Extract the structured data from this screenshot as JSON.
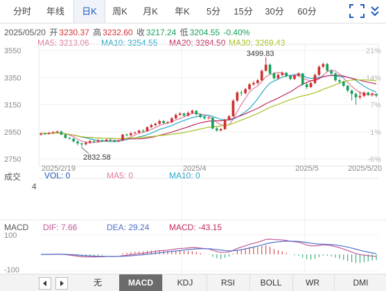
{
  "period_tabs": [
    "分时",
    "年线",
    "日K",
    "周K",
    "月K",
    "年K",
    "5分",
    "15分",
    "30分",
    "60分"
  ],
  "active_tab": "日K",
  "quote": {
    "date": "2025/05/20",
    "open_label": "开",
    "open": "3230.37",
    "high_label": "高",
    "high": "3232.60",
    "close_label": "收",
    "close": "3217.24",
    "low_label": "低",
    "low": "3204.55",
    "change_pct": "-0.40%"
  },
  "ma": {
    "ma5": "MA5: 3213.06",
    "ma10": "MA10: 3254.55",
    "ma20": "MA20: 3284.50",
    "ma30": "MA30: 3269.43"
  },
  "colors": {
    "up": "#d03030",
    "down": "#16a05a",
    "ma5": "#e07aa0",
    "ma10": "#28a8c8",
    "ma20": "#c02860",
    "ma30": "#a6c21e",
    "dif": "#c05898",
    "dea": "#5070c8"
  },
  "price_axis": {
    "ticks": [
      "3550",
      "3350",
      "3150",
      "2950",
      "2750"
    ],
    "values": [
      3550,
      3350,
      3150,
      2950,
      2750
    ],
    "range": [
      2750,
      3550
    ]
  },
  "pct_axis": [
    "21%",
    "14%",
    "7%",
    "1%",
    "-6%"
  ],
  "date_labels": [
    "2025/2/19",
    "2025/4",
    "2025/5",
    "2025/5/20"
  ],
  "annotations": {
    "high": "3499.83",
    "low": "2832.58"
  },
  "volume": {
    "label": "成交",
    "vol": "VOL: 0",
    "ma5": "MA5: 0",
    "ma10": "MA10: 0",
    "scale": "4"
  },
  "macd": {
    "label": "MACD",
    "dif": "DIF: 7.66",
    "dea": "DEA: 29.24",
    "macd": "MACD: -43.15",
    "ticks": [
      "100",
      "-100"
    ]
  },
  "indicator_tabs": [
    "无",
    "MACD",
    "KDJ",
    "RSI",
    "BOLL",
    "WR",
    "DMI"
  ],
  "active_indicator": "MACD",
  "chart_data": {
    "type": "candlestick",
    "candles": [
      [
        2930,
        2938,
        2922,
        2945
      ],
      [
        2938,
        2935,
        2928,
        2945
      ],
      [
        2935,
        2942,
        2930,
        2950
      ],
      [
        2942,
        2947,
        2935,
        2955
      ],
      [
        2947,
        2952,
        2940,
        2960
      ],
      [
        2952,
        2930,
        2925,
        2958
      ],
      [
        2930,
        2905,
        2900,
        2935
      ],
      [
        2905,
        2900,
        2895,
        2912
      ],
      [
        2900,
        2880,
        2870,
        2905
      ],
      [
        2880,
        2865,
        2850,
        2885
      ],
      [
        2865,
        2858,
        2832,
        2870
      ],
      [
        2858,
        2870,
        2850,
        2880
      ],
      [
        2870,
        2882,
        2862,
        2890
      ],
      [
        2882,
        2878,
        2868,
        2890
      ],
      [
        2878,
        2888,
        2870,
        2895
      ],
      [
        2888,
        2882,
        2875,
        2895
      ],
      [
        2882,
        2892,
        2878,
        2898
      ],
      [
        2892,
        2888,
        2880,
        2900
      ],
      [
        2888,
        2880,
        2872,
        2895
      ],
      [
        2880,
        2886,
        2874,
        2893
      ],
      [
        2886,
        2930,
        2882,
        2935
      ],
      [
        2930,
        2925,
        2915,
        2938
      ],
      [
        2925,
        2940,
        2920,
        2948
      ],
      [
        2940,
        2945,
        2932,
        2952
      ],
      [
        2945,
        2960,
        2938,
        2965
      ],
      [
        2960,
        2955,
        2945,
        2968
      ],
      [
        2955,
        2985,
        2950,
        2990
      ],
      [
        2985,
        3000,
        2978,
        3010
      ],
      [
        3000,
        3010,
        2990,
        3020
      ],
      [
        3010,
        3030,
        3000,
        3040
      ],
      [
        3030,
        3015,
        3005,
        3035
      ],
      [
        3015,
        3020,
        3008,
        3030
      ],
      [
        3020,
        3050,
        3015,
        3060
      ],
      [
        3050,
        3075,
        3045,
        3085
      ],
      [
        3075,
        3085,
        3068,
        3095
      ],
      [
        3085,
        3070,
        3060,
        3092
      ],
      [
        3070,
        3090,
        3062,
        3100
      ],
      [
        3090,
        3105,
        3082,
        3115
      ],
      [
        3105,
        3080,
        3070,
        3110
      ],
      [
        3080,
        3060,
        3050,
        3085
      ],
      [
        3060,
        3050,
        3040,
        3068
      ],
      [
        3050,
        3055,
        3042,
        3062
      ],
      [
        3055,
        2975,
        2968,
        3058
      ],
      [
        2975,
        2960,
        2952,
        2985
      ],
      [
        2960,
        2970,
        2955,
        2978
      ],
      [
        2970,
        3040,
        2965,
        3045
      ],
      [
        3040,
        3065,
        3035,
        3075
      ],
      [
        3065,
        3180,
        3060,
        3190
      ],
      [
        3180,
        3240,
        3170,
        3250
      ],
      [
        3240,
        3235,
        3215,
        3255
      ],
      [
        3235,
        3265,
        3225,
        3275
      ],
      [
        3265,
        3300,
        3255,
        3310
      ],
      [
        3300,
        3310,
        3290,
        3325
      ],
      [
        3310,
        3330,
        3300,
        3340
      ],
      [
        3330,
        3400,
        3325,
        3410
      ],
      [
        3400,
        3445,
        3395,
        3499.83
      ],
      [
        3445,
        3380,
        3370,
        3455
      ],
      [
        3380,
        3345,
        3335,
        3392
      ],
      [
        3345,
        3370,
        3338,
        3380
      ],
      [
        3370,
        3385,
        3360,
        3395
      ],
      [
        3385,
        3360,
        3352,
        3392
      ],
      [
        3360,
        3340,
        3330,
        3368
      ],
      [
        3340,
        3365,
        3332,
        3372
      ],
      [
        3365,
        3380,
        3355,
        3390
      ],
      [
        3380,
        3300,
        3290,
        3385
      ],
      [
        3300,
        3280,
        3265,
        3310
      ],
      [
        3280,
        3310,
        3272,
        3318
      ],
      [
        3310,
        3370,
        3300,
        3380
      ],
      [
        3370,
        3430,
        3362,
        3440
      ],
      [
        3430,
        3450,
        3420,
        3460
      ],
      [
        3450,
        3400,
        3390,
        3458
      ],
      [
        3400,
        3380,
        3370,
        3410
      ],
      [
        3380,
        3330,
        3320,
        3388
      ],
      [
        3330,
        3320,
        3305,
        3340
      ],
      [
        3320,
        3290,
        3280,
        3325
      ],
      [
        3290,
        3255,
        3240,
        3295
      ],
      [
        3255,
        3230,
        3180,
        3260
      ],
      [
        3230,
        3205,
        3150,
        3240
      ],
      [
        3205,
        3215,
        3190,
        3250
      ],
      [
        3215,
        3240,
        3205,
        3248
      ],
      [
        3240,
        3225,
        3215,
        3245
      ],
      [
        3225,
        3232,
        3210,
        3240
      ],
      [
        3230.37,
        3217.24,
        3204.55,
        3232.6
      ]
    ]
  }
}
